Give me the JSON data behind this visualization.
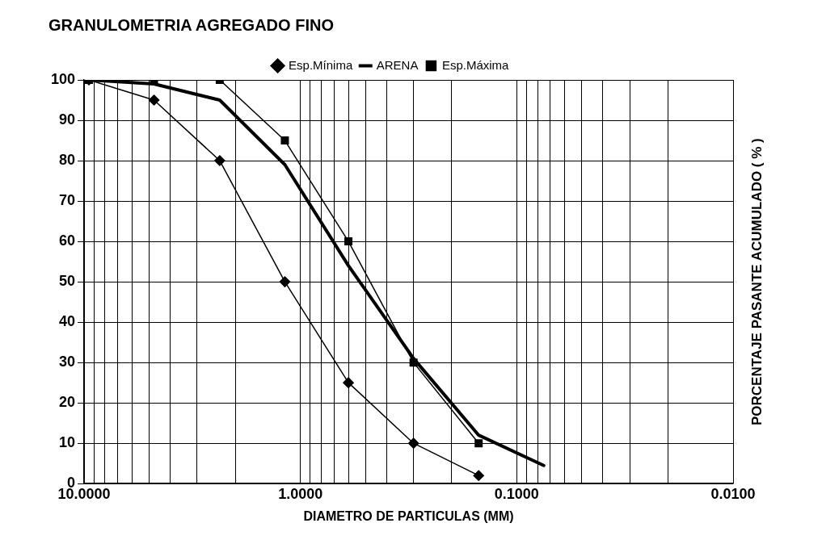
{
  "chart_data": {
    "type": "line",
    "title": "GRANULOMETRIA AGREGADO FINO",
    "xlabel": "DIAMETRO DE PARTICULAS (MM)",
    "ylabel": "PORCENTAJE PASANTE ACUMULADO ( % )",
    "log": "x",
    "xlim": [
      10,
      0.01
    ],
    "ylim": [
      0,
      100
    ],
    "xticks": [
      {
        "value": 10,
        "label": "10.0000"
      },
      {
        "value": 9,
        "label": null
      },
      {
        "value": 8,
        "label": null
      },
      {
        "value": 7,
        "label": null
      },
      {
        "value": 6,
        "label": null
      },
      {
        "value": 5,
        "label": null
      },
      {
        "value": 4,
        "label": null
      },
      {
        "value": 3,
        "label": null
      },
      {
        "value": 2,
        "label": null
      },
      {
        "value": 1,
        "label": "1.0000"
      },
      {
        "value": 0.9,
        "label": null
      },
      {
        "value": 0.8,
        "label": null
      },
      {
        "value": 0.7,
        "label": null
      },
      {
        "value": 0.6,
        "label": null
      },
      {
        "value": 0.5,
        "label": null
      },
      {
        "value": 0.4,
        "label": null
      },
      {
        "value": 0.3,
        "label": null
      },
      {
        "value": 0.2,
        "label": null
      },
      {
        "value": 0.1,
        "label": "0.1000"
      },
      {
        "value": 0.09,
        "label": null
      },
      {
        "value": 0.08,
        "label": null
      },
      {
        "value": 0.07,
        "label": null
      },
      {
        "value": 0.06,
        "label": null
      },
      {
        "value": 0.05,
        "label": null
      },
      {
        "value": 0.04,
        "label": null
      },
      {
        "value": 0.03,
        "label": null
      },
      {
        "value": 0.02,
        "label": null
      },
      {
        "value": 0.01,
        "label": "0.0100"
      }
    ],
    "yticks": [
      0,
      10,
      20,
      30,
      40,
      50,
      60,
      70,
      80,
      90,
      100
    ],
    "grid": true,
    "legend": "top",
    "line_style": "solid",
    "series": [
      {
        "name": "Esp.Mínima",
        "color": "#000000",
        "marker": "diamond",
        "x": [
          9.5,
          4.75,
          2.36,
          1.18,
          0.6,
          0.3,
          0.15
        ],
        "values": [
          100,
          95,
          80,
          50,
          25,
          10,
          2
        ]
      },
      {
        "name": "ARENA",
        "color": "#000000",
        "marker": "none",
        "x": [
          9.5,
          4.75,
          2.36,
          1.18,
          0.6,
          0.3,
          0.15,
          0.075
        ],
        "values": [
          100,
          99,
          95,
          79,
          54,
          31,
          12,
          4.5
        ]
      },
      {
        "name": "Esp.Máxima",
        "color": "#000000",
        "marker": "square",
        "x": [
          9.5,
          4.75,
          2.36,
          1.18,
          0.6,
          0.3,
          0.15
        ],
        "values": [
          100,
          100,
          100,
          85,
          60,
          30,
          10
        ]
      }
    ]
  }
}
